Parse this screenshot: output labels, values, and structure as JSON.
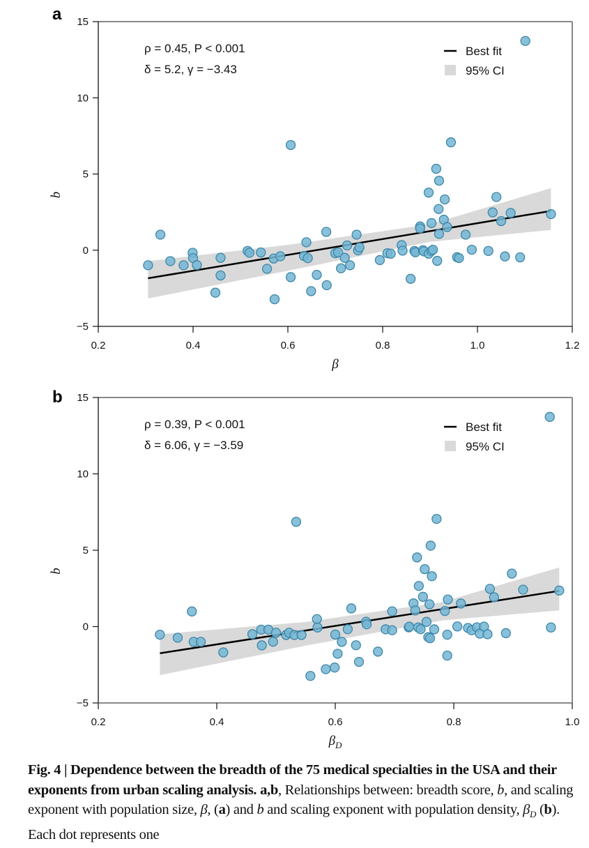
{
  "chart_data": [
    {
      "type": "scatter",
      "panel": "a",
      "xlabel": "β",
      "ylabel": "b",
      "xlim": [
        0.2,
        1.2
      ],
      "ylim": [
        -5,
        15
      ],
      "xticks": [
        "0.2",
        "0.4",
        "0.6",
        "0.8",
        "1.0",
        "1.2"
      ],
      "yticks": [
        "−5",
        "0",
        "5",
        "10",
        "15"
      ],
      "annotation": [
        "ρ = 0.45, P < 0.001",
        "δ = 5.2, γ = −3.43"
      ],
      "legend": {
        "position": "top-right",
        "entries": [
          "Best fit",
          "95% CI"
        ]
      },
      "fit": {
        "slope": 5.2,
        "intercept": -3.43,
        "x_range": [
          0.305,
          1.155
        ]
      },
      "ci": {
        "x": [
          0.305,
          0.6,
          0.9,
          1.155
        ],
        "upper": [
          -0.72,
          0.35,
          1.7,
          4.07
        ],
        "lower": [
          -3.17,
          -1.35,
          0.55,
          1.33
        ]
      },
      "points": [
        [
          0.305,
          -0.99
        ],
        [
          0.331,
          1.02
        ],
        [
          0.352,
          -0.72
        ],
        [
          0.38,
          -0.99
        ],
        [
          0.399,
          -0.17
        ],
        [
          0.4,
          -0.52
        ],
        [
          0.408,
          -0.98
        ],
        [
          0.447,
          -2.79
        ],
        [
          0.458,
          -0.5
        ],
        [
          0.458,
          -1.66
        ],
        [
          0.515,
          -0.05
        ],
        [
          0.519,
          -0.17
        ],
        [
          0.543,
          -0.15
        ],
        [
          0.556,
          -1.22
        ],
        [
          0.57,
          -0.55
        ],
        [
          0.572,
          -3.22
        ],
        [
          0.584,
          -0.4
        ],
        [
          0.606,
          6.9
        ],
        [
          0.606,
          -1.77
        ],
        [
          0.634,
          -0.38
        ],
        [
          0.639,
          0.52
        ],
        [
          0.642,
          -0.52
        ],
        [
          0.649,
          -2.69
        ],
        [
          0.661,
          -1.62
        ],
        [
          0.681,
          1.2
        ],
        [
          0.682,
          -2.3
        ],
        [
          0.7,
          -0.2
        ],
        [
          0.706,
          -0.15
        ],
        [
          0.712,
          -1.19
        ],
        [
          0.72,
          -0.5
        ],
        [
          0.725,
          0.31
        ],
        [
          0.731,
          -0.99
        ],
        [
          0.745,
          1.02
        ],
        [
          0.748,
          -0.01
        ],
        [
          0.751,
          0.18
        ],
        [
          0.794,
          -0.65
        ],
        [
          0.81,
          -0.2
        ],
        [
          0.817,
          -0.23
        ],
        [
          0.84,
          0.33
        ],
        [
          0.842,
          -0.03
        ],
        [
          0.859,
          -1.88
        ],
        [
          0.867,
          -0.05
        ],
        [
          0.869,
          -0.14
        ],
        [
          0.879,
          1.56
        ],
        [
          0.879,
          1.43
        ],
        [
          0.885,
          0.0
        ],
        [
          0.887,
          -0.08
        ],
        [
          0.897,
          3.78
        ],
        [
          0.897,
          -0.23
        ],
        [
          0.903,
          1.78
        ],
        [
          0.903,
          -0.05
        ],
        [
          0.906,
          0.03
        ],
        [
          0.913,
          5.34
        ],
        [
          0.915,
          -0.7
        ],
        [
          0.918,
          2.7
        ],
        [
          0.919,
          4.56
        ],
        [
          0.919,
          1.07
        ],
        [
          0.929,
          2.0
        ],
        [
          0.931,
          3.33
        ],
        [
          0.936,
          1.52
        ],
        [
          0.944,
          7.08
        ],
        [
          0.957,
          -0.46
        ],
        [
          0.961,
          -0.52
        ],
        [
          0.975,
          1.02
        ],
        [
          0.988,
          0.03
        ],
        [
          1.023,
          -0.05
        ],
        [
          1.032,
          2.48
        ],
        [
          1.04,
          3.49
        ],
        [
          1.05,
          1.91
        ],
        [
          1.058,
          -0.41
        ],
        [
          1.07,
          2.44
        ],
        [
          1.09,
          -0.47
        ],
        [
          1.101,
          13.73
        ],
        [
          1.155,
          2.37
        ]
      ]
    },
    {
      "type": "scatter",
      "panel": "b",
      "xlabel": "βD",
      "ylabel": "b",
      "xlim": [
        0.2,
        1.0
      ],
      "ylim": [
        -5,
        15
      ],
      "xticks": [
        "0.2",
        "0.4",
        "0.6",
        "0.8",
        "1.0"
      ],
      "yticks": [
        "−5",
        "0",
        "5",
        "10",
        "15"
      ],
      "annotation": [
        "ρ = 0.39, P < 0.001",
        "δ = 6.06, γ = −3.59"
      ],
      "legend": {
        "position": "top-right",
        "entries": [
          "Best fit",
          "95% CI"
        ]
      },
      "fit": {
        "slope": 6.06,
        "intercept": -3.59,
        "x_range": [
          0.304,
          0.978
        ]
      },
      "ci": {
        "x": [
          0.304,
          0.55,
          0.78,
          0.978
        ],
        "upper": [
          -0.5,
          0.3,
          1.6,
          3.87
        ],
        "lower": [
          -3.18,
          -1.25,
          0.4,
          1.06
        ]
      },
      "points": [
        [
          0.304,
          -0.53
        ],
        [
          0.334,
          -0.73
        ],
        [
          0.358,
          0.99
        ],
        [
          0.361,
          -1.0
        ],
        [
          0.373,
          -1.0
        ],
        [
          0.411,
          -1.69
        ],
        [
          0.46,
          -0.5
        ],
        [
          0.475,
          -0.2
        ],
        [
          0.476,
          -1.23
        ],
        [
          0.487,
          -0.2
        ],
        [
          0.495,
          -0.99
        ],
        [
          0.5,
          -0.4
        ],
        [
          0.517,
          -0.55
        ],
        [
          0.522,
          -0.4
        ],
        [
          0.531,
          -0.55
        ],
        [
          0.534,
          6.86
        ],
        [
          0.543,
          -0.55
        ],
        [
          0.558,
          -3.23
        ],
        [
          0.569,
          0.49
        ],
        [
          0.57,
          -0.06
        ],
        [
          0.584,
          -2.79
        ],
        [
          0.599,
          -2.68
        ],
        [
          0.6,
          -0.52
        ],
        [
          0.604,
          -1.78
        ],
        [
          0.611,
          -1.0
        ],
        [
          0.621,
          -0.17
        ],
        [
          0.627,
          1.19
        ],
        [
          0.635,
          -1.22
        ],
        [
          0.64,
          -2.31
        ],
        [
          0.652,
          0.31
        ],
        [
          0.653,
          0.15
        ],
        [
          0.672,
          -1.64
        ],
        [
          0.685,
          -0.18
        ],
        [
          0.696,
          -0.24
        ],
        [
          0.696,
          1.0
        ],
        [
          0.724,
          -0.05
        ],
        [
          0.725,
          0.0
        ],
        [
          0.732,
          1.52
        ],
        [
          0.735,
          1.06
        ],
        [
          0.738,
          4.53
        ],
        [
          0.74,
          -0.06
        ],
        [
          0.741,
          2.66
        ],
        [
          0.744,
          -0.17
        ],
        [
          0.748,
          1.95
        ],
        [
          0.751,
          3.76
        ],
        [
          0.754,
          0.31
        ],
        [
          0.757,
          -0.69
        ],
        [
          0.759,
          1.46
        ],
        [
          0.76,
          -0.76
        ],
        [
          0.761,
          5.3
        ],
        [
          0.763,
          3.3
        ],
        [
          0.767,
          -0.18
        ],
        [
          0.771,
          7.05
        ],
        [
          0.785,
          1.02
        ],
        [
          0.789,
          -0.53
        ],
        [
          0.789,
          -1.9
        ],
        [
          0.79,
          1.77
        ],
        [
          0.806,
          0.01
        ],
        [
          0.812,
          1.51
        ],
        [
          0.824,
          -0.09
        ],
        [
          0.83,
          -0.24
        ],
        [
          0.839,
          -0.05
        ],
        [
          0.844,
          -0.46
        ],
        [
          0.851,
          0.0
        ],
        [
          0.857,
          -0.5
        ],
        [
          0.861,
          2.47
        ],
        [
          0.868,
          1.92
        ],
        [
          0.888,
          -0.43
        ],
        [
          0.898,
          3.47
        ],
        [
          0.917,
          2.42
        ],
        [
          0.962,
          13.73
        ],
        [
          0.964,
          -0.06
        ],
        [
          0.978,
          2.36
        ]
      ]
    }
  ],
  "colors": {
    "point_fill": "#74b6d3",
    "point_stroke": "#3d86a8",
    "fit_line": "#000000",
    "ci_band": "#d9d9d9",
    "frame_top_right": "#888888",
    "axis": "#111111"
  },
  "caption": {
    "fig_label": "Fig. 4 | ",
    "bold_title": "Dependence between the breadth of the 75 medical specialties in the USA and their exponents from urban scaling analysis.",
    "panels_label": "a,b",
    "body_1": ", Relationships between: breadth score, ",
    "b_symbol": "b",
    "body_2": ", and scaling exponent with population size, ",
    "beta": "β",
    "body_3": ", (",
    "a_ref": "a",
    "body_4": ") and ",
    "body_5": " and scaling exponent with population density, ",
    "beta_d": "β",
    "sub_d": "D",
    "body_6": " (",
    "b_ref": "b",
    "body_7": "). Each dot represents one"
  }
}
